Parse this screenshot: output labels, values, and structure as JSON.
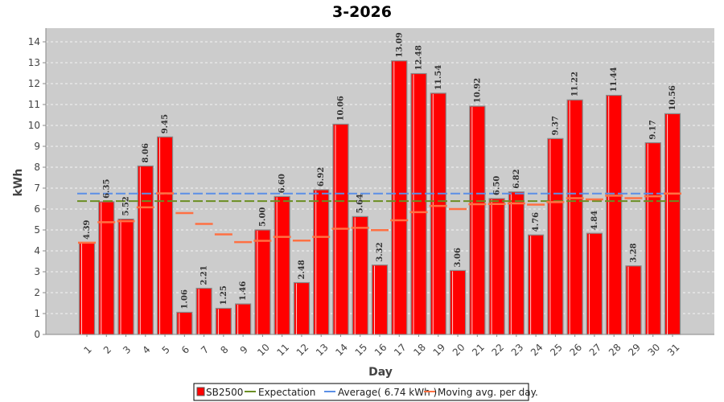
{
  "chart_data": {
    "type": "bar",
    "title": "3-2026",
    "xlabel": "Day",
    "ylabel": "kWh",
    "ylim": [
      0,
      14.7
    ],
    "yticks": [
      0,
      1,
      2,
      3,
      4,
      5,
      6,
      7,
      8,
      9,
      10,
      11,
      12,
      13,
      14
    ],
    "grid": true,
    "legend_position": "bottom",
    "categories": [
      "1",
      "2",
      "3",
      "4",
      "5",
      "6",
      "7",
      "8",
      "9",
      "10",
      "11",
      "12",
      "13",
      "14",
      "15",
      "16",
      "17",
      "18",
      "19",
      "20",
      "21",
      "22",
      "23",
      "24",
      "25",
      "26",
      "27",
      "28",
      "29",
      "30",
      "31"
    ],
    "series": [
      {
        "name": "SB2500",
        "color": "#ff0000",
        "values": [
          4.39,
          6.35,
          5.52,
          8.06,
          9.45,
          1.06,
          2.21,
          1.25,
          1.46,
          5.0,
          6.6,
          2.48,
          6.92,
          10.06,
          5.64,
          3.32,
          13.09,
          12.48,
          11.54,
          3.06,
          10.92,
          6.5,
          6.82,
          4.76,
          9.37,
          11.22,
          4.84,
          11.44,
          3.28,
          9.17,
          10.56
        ],
        "labels": [
          "4.39",
          "6.35",
          "5.52",
          "8.06",
          "9.45",
          "1.06",
          "2.21",
          "1.25",
          "1.46",
          "5.00",
          "6.60",
          "2.48",
          "6.92",
          "10.06",
          "5.64",
          "3.32",
          "13.09",
          "12.48",
          "11.54",
          "3.06",
          "10.92",
          "6.50",
          "6.82",
          "4.76",
          "9.37",
          "11.22",
          "4.84",
          "11.44",
          "3.28",
          "9.17",
          "10.56"
        ]
      },
      {
        "name": "Expectation",
        "color": "#6b8e23",
        "value": 6.38
      },
      {
        "name": "Average( 6.74 kWh )",
        "color": "#5b8fe6",
        "value": 6.74
      },
      {
        "name": "Moving avg. per day.",
        "color": "#ff7043",
        "values": [
          4.39,
          5.37,
          5.42,
          6.08,
          6.75,
          5.81,
          5.29,
          4.79,
          4.42,
          4.48,
          4.67,
          4.49,
          4.67,
          5.06,
          5.1,
          4.99,
          5.46,
          5.85,
          6.15,
          6.0,
          6.23,
          6.24,
          6.27,
          6.21,
          6.33,
          6.52,
          6.46,
          6.64,
          6.52,
          6.61,
          6.74
        ]
      }
    ]
  }
}
